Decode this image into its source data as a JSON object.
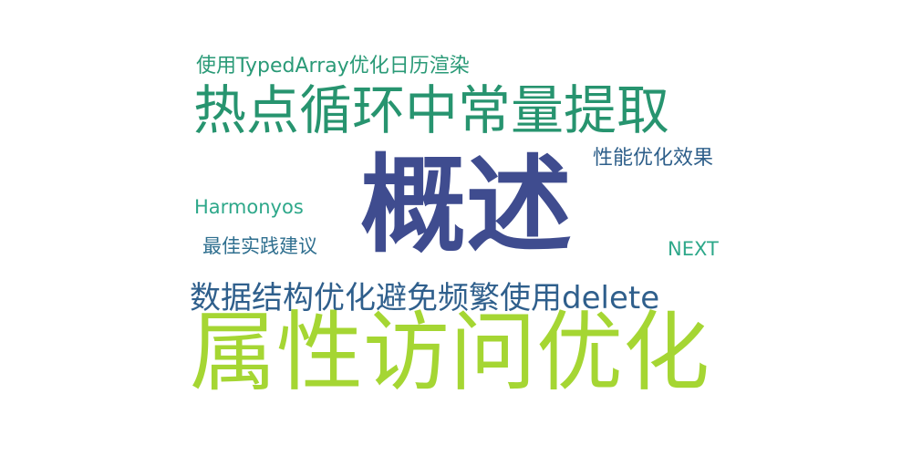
{
  "words": [
    {
      "id": "w-gaishu",
      "text": "概述",
      "color": "#3f4c8f"
    },
    {
      "id": "w-shuxing",
      "text": "属性访问优化",
      "color": "#a5d633"
    },
    {
      "id": "w-redian",
      "text": "热点循环中常量提取",
      "color": "#27946f"
    },
    {
      "id": "w-shuju",
      "text": "数据结构优化避免频繁使用delete",
      "color": "#2f5f8c"
    },
    {
      "id": "w-typed",
      "text": "使用TypedArray优化日历渲染",
      "color": "#2a9a77"
    },
    {
      "id": "w-xingneng",
      "text": "性能优化效果",
      "color": "#2e5f8a"
    },
    {
      "id": "w-harmony",
      "text": "Harmonyos",
      "color": "#2ea88a"
    },
    {
      "id": "w-zuijia",
      "text": "最佳实践建议",
      "color": "#2f6f8f"
    },
    {
      "id": "w-next",
      "text": "NEXT",
      "color": "#2ea88a"
    }
  ]
}
